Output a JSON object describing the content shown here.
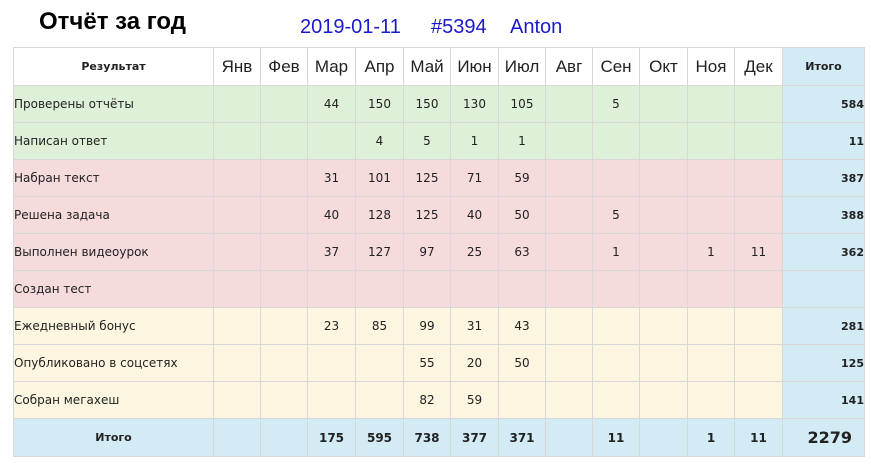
{
  "title": "Отчёт за год",
  "date": "2019-01-11",
  "id": "#5394",
  "user": "Anton",
  "headers": {
    "result": "Результат",
    "months": [
      "Янв",
      "Фев",
      "Мар",
      "Апр",
      "Май",
      "Июн",
      "Июл",
      "Авг",
      "Сен",
      "Окт",
      "Ноя",
      "Дек"
    ],
    "total": "Итого"
  },
  "colors": {
    "green": "#dff0d8",
    "red": "#f6dbdd",
    "yellow": "#fcf6e0",
    "total": "#d2ebf5",
    "meta_text": "#1a1acc"
  },
  "rows": [
    {
      "label": "Проверены отчёты",
      "group": "g",
      "values": [
        "",
        "",
        "44",
        "150",
        "150",
        "130",
        "105",
        "",
        "5",
        "",
        "",
        ""
      ],
      "total": "584"
    },
    {
      "label": "Написан ответ",
      "group": "g",
      "values": [
        "",
        "",
        "",
        "4",
        "5",
        "1",
        "1",
        "",
        "",
        "",
        "",
        ""
      ],
      "total": "11"
    },
    {
      "label": "Набран текст",
      "group": "r",
      "values": [
        "",
        "",
        "31",
        "101",
        "125",
        "71",
        "59",
        "",
        "",
        "",
        "",
        ""
      ],
      "total": "387"
    },
    {
      "label": "Решена задача",
      "group": "r",
      "values": [
        "",
        "",
        "40",
        "128",
        "125",
        "40",
        "50",
        "",
        "5",
        "",
        "",
        ""
      ],
      "total": "388"
    },
    {
      "label": "Выполнен видеоурок",
      "group": "r",
      "values": [
        "",
        "",
        "37",
        "127",
        "97",
        "25",
        "63",
        "",
        "1",
        "",
        "1",
        "11"
      ],
      "total": "362"
    },
    {
      "label": "Создан тест",
      "group": "r",
      "values": [
        "",
        "",
        "",
        "",
        "",
        "",
        "",
        "",
        "",
        "",
        "",
        ""
      ],
      "total": ""
    },
    {
      "label": "Ежедневный бонус",
      "group": "y",
      "values": [
        "",
        "",
        "23",
        "85",
        "99",
        "31",
        "43",
        "",
        "",
        "",
        "",
        ""
      ],
      "total": "281"
    },
    {
      "label": "Опубликовано в соцсетях",
      "group": "y",
      "values": [
        "",
        "",
        "",
        "",
        "55",
        "20",
        "50",
        "",
        "",
        "",
        "",
        ""
      ],
      "total": "125"
    },
    {
      "label": "Собран мегахеш",
      "group": "y",
      "values": [
        "",
        "",
        "",
        "",
        "82",
        "59",
        "",
        "",
        "",
        "",
        "",
        ""
      ],
      "total": "141"
    }
  ],
  "footer": {
    "label": "Итого",
    "values": [
      "",
      "",
      "175",
      "595",
      "738",
      "377",
      "371",
      "",
      "11",
      "",
      "1",
      "11"
    ],
    "total": "2279"
  }
}
